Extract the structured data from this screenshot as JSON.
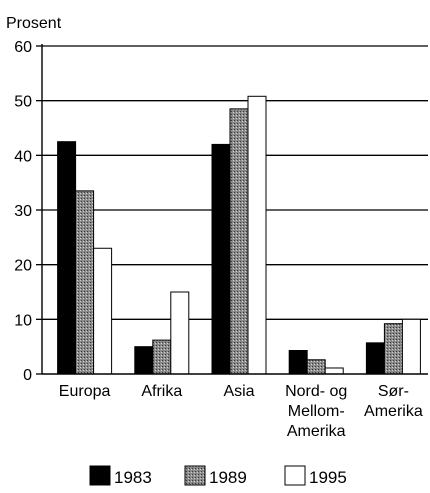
{
  "chart_data": {
    "type": "bar",
    "ylabel": "Prosent",
    "ylim": [
      0,
      60
    ],
    "yticks": [
      0,
      10,
      20,
      30,
      40,
      50,
      60
    ],
    "grid": true,
    "legend_position": "bottom",
    "categories": [
      [
        "Europa"
      ],
      [
        "Afrika"
      ],
      [
        "Asia"
      ],
      [
        "Nord- og",
        "Mellom-",
        "Amerika"
      ],
      [
        "Sør-",
        "Amerika"
      ]
    ],
    "series": [
      {
        "name": "1983",
        "values": [
          42.5,
          5,
          42,
          4.3,
          5.7
        ],
        "fill": "#000000"
      },
      {
        "name": "1989",
        "values": [
          33.5,
          6.2,
          48.5,
          2.6,
          9.2
        ],
        "fill": "#7a7a7a"
      },
      {
        "name": "1995",
        "values": [
          23,
          15,
          50.8,
          1.1,
          10
        ],
        "fill": "#ffffff"
      }
    ]
  }
}
